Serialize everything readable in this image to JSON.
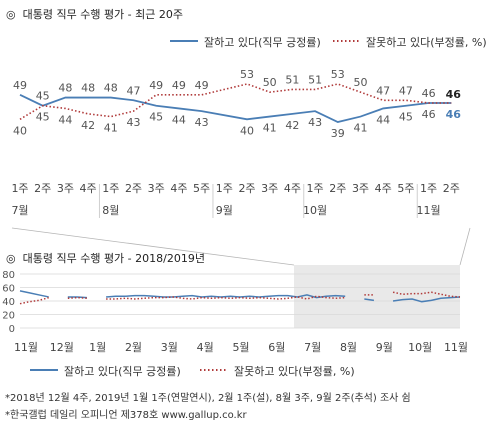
{
  "chart_data": [
    {
      "type": "line",
      "title": "대통령 직무 수행 평가 - 최근 20주",
      "title_symbol": "◎",
      "legend_position": "top-right",
      "categories": [
        "1주",
        "2주",
        "3주",
        "4주",
        "1주",
        "2주",
        "3주",
        "4주",
        "5주",
        "1주",
        "2주",
        "3주",
        "4주",
        "1주",
        "2주",
        "3주",
        "4주",
        "5주",
        "1주",
        "2주"
      ],
      "months": [
        {
          "label": "7월",
          "index": 0
        },
        {
          "label": "8월",
          "index": 4
        },
        {
          "label": "9월",
          "index": 9
        },
        {
          "label": "10월",
          "index": 13
        },
        {
          "label": "11월",
          "index": 18
        }
      ],
      "series": [
        {
          "name": "잘하고 있다(직무 긍정률)",
          "color": "#4a7eb5",
          "style": "solid",
          "values": [
            49,
            45,
            48,
            48,
            48,
            47,
            45,
            44,
            43,
            null,
            40,
            41,
            42,
            43,
            39,
            41,
            44,
            45,
            46,
            null
          ]
        },
        {
          "name": "잘못하고 있다(부정률, %)",
          "color": "#b03a3a",
          "style": "dotted",
          "values": [
            40,
            45,
            44,
            42,
            41,
            43,
            49,
            49,
            49,
            null,
            53,
            50,
            51,
            51,
            53,
            50,
            47,
            47,
            46,
            null
          ]
        }
      ],
      "end_labels": {
        "positive": "46",
        "negative": "46"
      }
    },
    {
      "type": "line",
      "title": "대통령 직무 수행 평가 - 2018/2019년",
      "title_symbol": "◎",
      "ylim": [
        0,
        80
      ],
      "yticks": [
        "0",
        "20",
        "40",
        "60",
        "80"
      ],
      "xticks": [
        "11월",
        "12월",
        "1월",
        "2월",
        "3월",
        "4월",
        "5월",
        "6월",
        "7월",
        "8월",
        "9월",
        "10월",
        "11월"
      ],
      "highlight_from_index": 8,
      "grid": true,
      "legend_position": "bottom",
      "series": [
        {
          "name": "잘하고 있다(직무 긍정률)",
          "color": "#4a7eb5",
          "style": "solid",
          "values": [
            55,
            52,
            49,
            46,
            null,
            46,
            46,
            45,
            null,
            46,
            47,
            47,
            48,
            48,
            47,
            46,
            46,
            47,
            48,
            46,
            47,
            46,
            47,
            46,
            47,
            46,
            47,
            48,
            48,
            46,
            49,
            45,
            47,
            48,
            47,
            null,
            43,
            41,
            null,
            40,
            42,
            43,
            39,
            41,
            44,
            45,
            46
          ]
        },
        {
          "name": "잘못하고 있다(부정률, %)",
          "color": "#b03a3a",
          "style": "dotted",
          "values": [
            36,
            39,
            41,
            45,
            null,
            44,
            45,
            44,
            null,
            43,
            43,
            44,
            43,
            44,
            45,
            45,
            46,
            44,
            43,
            45,
            44,
            45,
            44,
            45,
            44,
            45,
            44,
            43,
            44,
            46,
            43,
            47,
            45,
            44,
            45,
            null,
            49,
            49,
            null,
            53,
            50,
            51,
            51,
            53,
            50,
            47,
            46
          ]
        }
      ]
    }
  ],
  "legend": {
    "positive": "잘하고 있다(직무 긍정률)",
    "negative": "잘못하고 있다(부정률, %)"
  },
  "footnotes": [
    "*2018년 12월 4주, 2019년 1월 1주(연말연시), 2월 1주(설), 8월 3주, 9월 2주(추석) 조사 쉼",
    "*한국갤럽 데일리 오피니언 제378호 www.gallup.co.kr"
  ],
  "colors": {
    "positive": "#4a7eb5",
    "negative": "#b03a3a",
    "highlight": "#e9e9e9",
    "grid": "#d8d8d8",
    "axis": "#9a9a9a"
  }
}
